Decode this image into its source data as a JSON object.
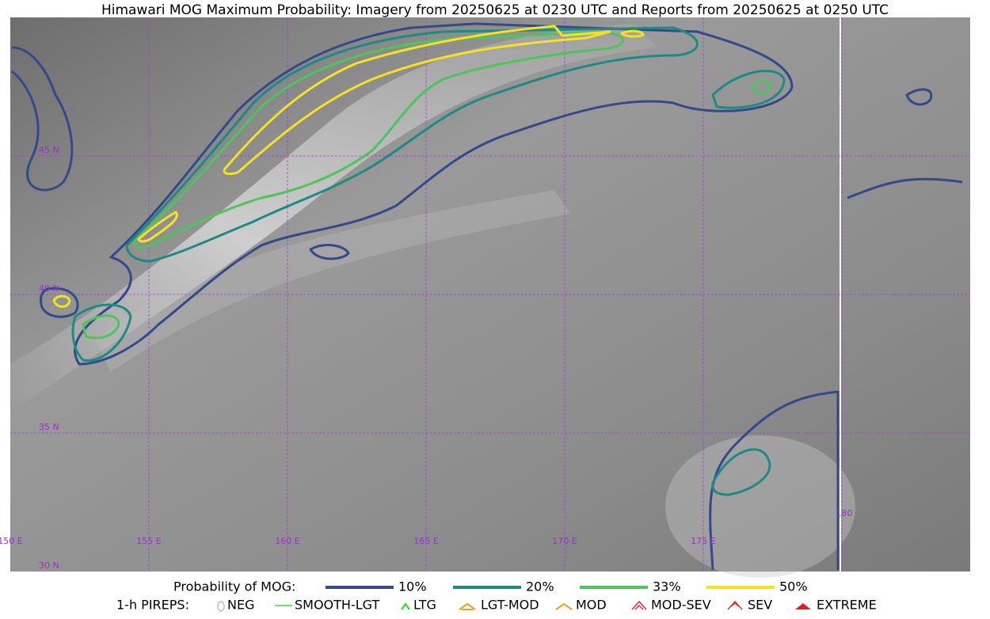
{
  "header": {
    "title": "Himawari MOG Maximum Probability: Imagery from 20250625 at 0230 UTC and Reports from 20250625 at 0250 UTC"
  },
  "map": {
    "lat_labels": [
      "45 N",
      "40 N",
      "35 N",
      "30 N"
    ],
    "lon_labels": [
      "150 E",
      "155 E",
      "160 E",
      "165 E",
      "170 E",
      "175 E",
      "180"
    ]
  },
  "legend": {
    "probability": {
      "label": "Probability of MOG:",
      "items": [
        {
          "label": "10%",
          "color": "#34498a"
        },
        {
          "label": "20%",
          "color": "#1e8b83"
        },
        {
          "label": "33%",
          "color": "#4dc45c"
        },
        {
          "label": "50%",
          "color": "#f7e126"
        }
      ]
    },
    "pireps": {
      "label": "1-h PIREPS:",
      "items": [
        {
          "label": "NEG"
        },
        {
          "label": "SMOOTH-LGT"
        },
        {
          "label": "LTG"
        },
        {
          "label": "LGT-MOD"
        },
        {
          "label": "MOD"
        },
        {
          "label": "MOD-SEV"
        },
        {
          "label": "SEV"
        },
        {
          "label": "EXTREME"
        }
      ]
    }
  }
}
